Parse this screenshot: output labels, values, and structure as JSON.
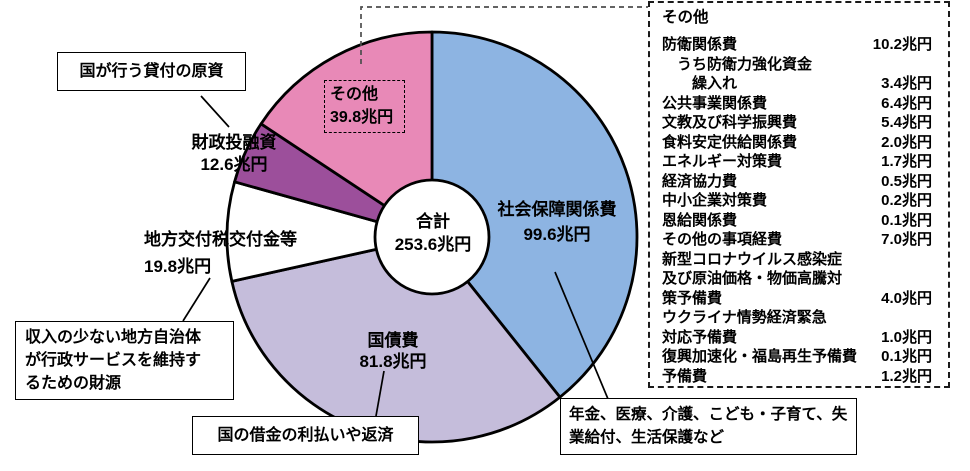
{
  "chart_data": {
    "type": "pie",
    "shape": "donut",
    "direction": "clockwise",
    "start_angle": "top",
    "unit": "兆円",
    "center": {
      "label": "合計",
      "value": "253.6兆円"
    },
    "total": 253.6,
    "segments": [
      {
        "label": "社会保障関係費",
        "value": 99.6,
        "display": "99.6兆円",
        "color": "#8db4e2"
      },
      {
        "label": "国債費",
        "value": 81.8,
        "display": "81.8兆円",
        "color": "#c5bddb"
      },
      {
        "label": "地方交付税交付金等",
        "value": 19.8,
        "display": "19.8兆円",
        "color": "#ffffff"
      },
      {
        "label": "財政投融資",
        "value": 12.6,
        "display": "12.6兆円",
        "color": "#9c4f9b"
      },
      {
        "label": "その他",
        "value": 39.8,
        "display": "39.8兆円",
        "color": "#e889b7"
      }
    ],
    "outline_color": "#000000"
  },
  "callouts": {
    "loan_source": "国が行う貸付の原資",
    "local_gov": "収入の少ない地方自治体\nが行政サービスを維持す\nるための財源",
    "debt_repayment": "国の借金の利払いや返済",
    "social_security": "年金、医療、介護、こども・子育て、失\n業給付、生活保護など"
  },
  "legend": {
    "title": "その他",
    "items": [
      {
        "label": "防衛関係費",
        "value": "10.2兆円"
      },
      {
        "label": "　うち防衛力強化資金\n　　繰入れ",
        "value": "3.4兆円"
      },
      {
        "label": "公共事業関係費",
        "value": "6.4兆円"
      },
      {
        "label": "文教及び科学振興費",
        "value": "5.4兆円"
      },
      {
        "label": "食料安定供給関係費",
        "value": "2.0兆円"
      },
      {
        "label": "エネルギー対策費",
        "value": "1.7兆円"
      },
      {
        "label": "経済協力費",
        "value": "0.5兆円"
      },
      {
        "label": "中小企業対策費",
        "value": "0.2兆円"
      },
      {
        "label": "恩給関係費",
        "value": "0.1兆円"
      },
      {
        "label": "その他の事項経費",
        "value": "7.0兆円"
      },
      {
        "label": "新型コロナウイルス感染症\n及び原油価格・物価高騰対\n策予備費",
        "value": "4.0兆円"
      },
      {
        "label": "ウクライナ情勢経済緊急\n対応予備費",
        "value": "1.0兆円"
      },
      {
        "label": "復興加速化・福島再生予備費",
        "value": "0.1兆円"
      },
      {
        "label": "予備費",
        "value": "1.2兆円"
      }
    ]
  }
}
